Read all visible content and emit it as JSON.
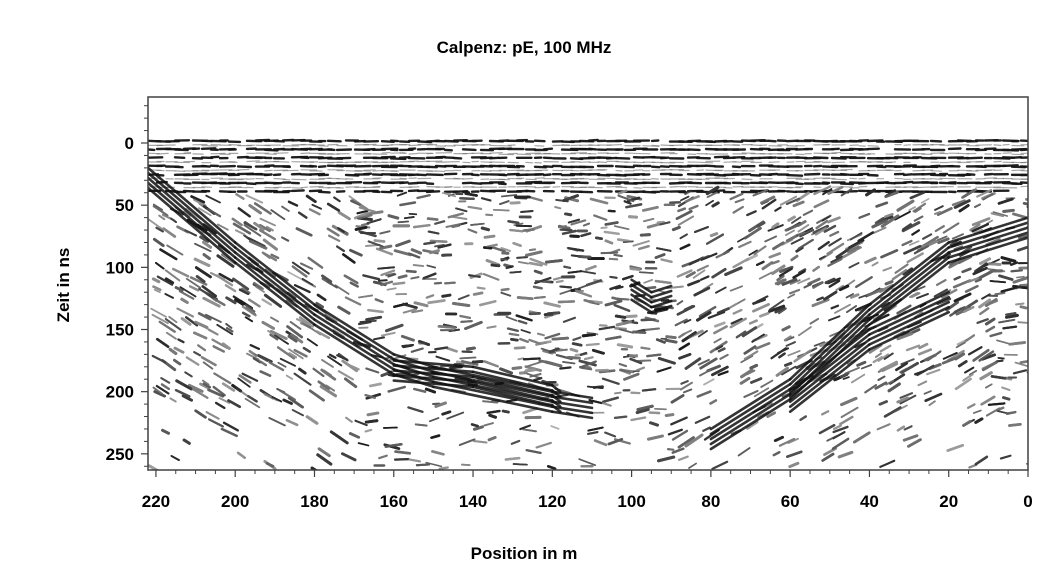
{
  "chart_data": {
    "type": "heatmap",
    "title": "Calpenz: pE, 100 MHz",
    "xlabel": "Position in m",
    "ylabel": "Zeit in ns",
    "x_ticks": [
      220,
      200,
      180,
      160,
      140,
      120,
      100,
      80,
      60,
      40,
      20,
      0
    ],
    "y_ticks": [
      0,
      50,
      100,
      150,
      200,
      250
    ],
    "xlim": [
      222,
      0
    ],
    "ylim": [
      -37,
      263
    ],
    "x_reversed": true,
    "y_reversed": true,
    "colormap": "grayscale",
    "reflector_trends": [
      {
        "x": [
          222,
          200,
          180,
          160,
          150,
          120,
          110
        ],
        "y": [
          20,
          80,
          130,
          170,
          180,
          200,
          205
        ]
      },
      {
        "x": [
          160,
          140,
          120,
          118
        ],
        "y": [
          175,
          180,
          195,
          200
        ]
      },
      {
        "x": [
          100,
          95,
          90
        ],
        "y": [
          110,
          120,
          115
        ]
      },
      {
        "x": [
          80,
          60,
          40,
          20,
          0
        ],
        "y": [
          230,
          190,
          130,
          80,
          60
        ]
      },
      {
        "x": [
          60,
          40,
          20
        ],
        "y": [
          200,
          150,
          120
        ]
      }
    ]
  },
  "colors": {
    "background": "#ffffff",
    "frame": "#404040",
    "signal_dark": "#1a1a1a",
    "signal_light": "#ffffff"
  }
}
